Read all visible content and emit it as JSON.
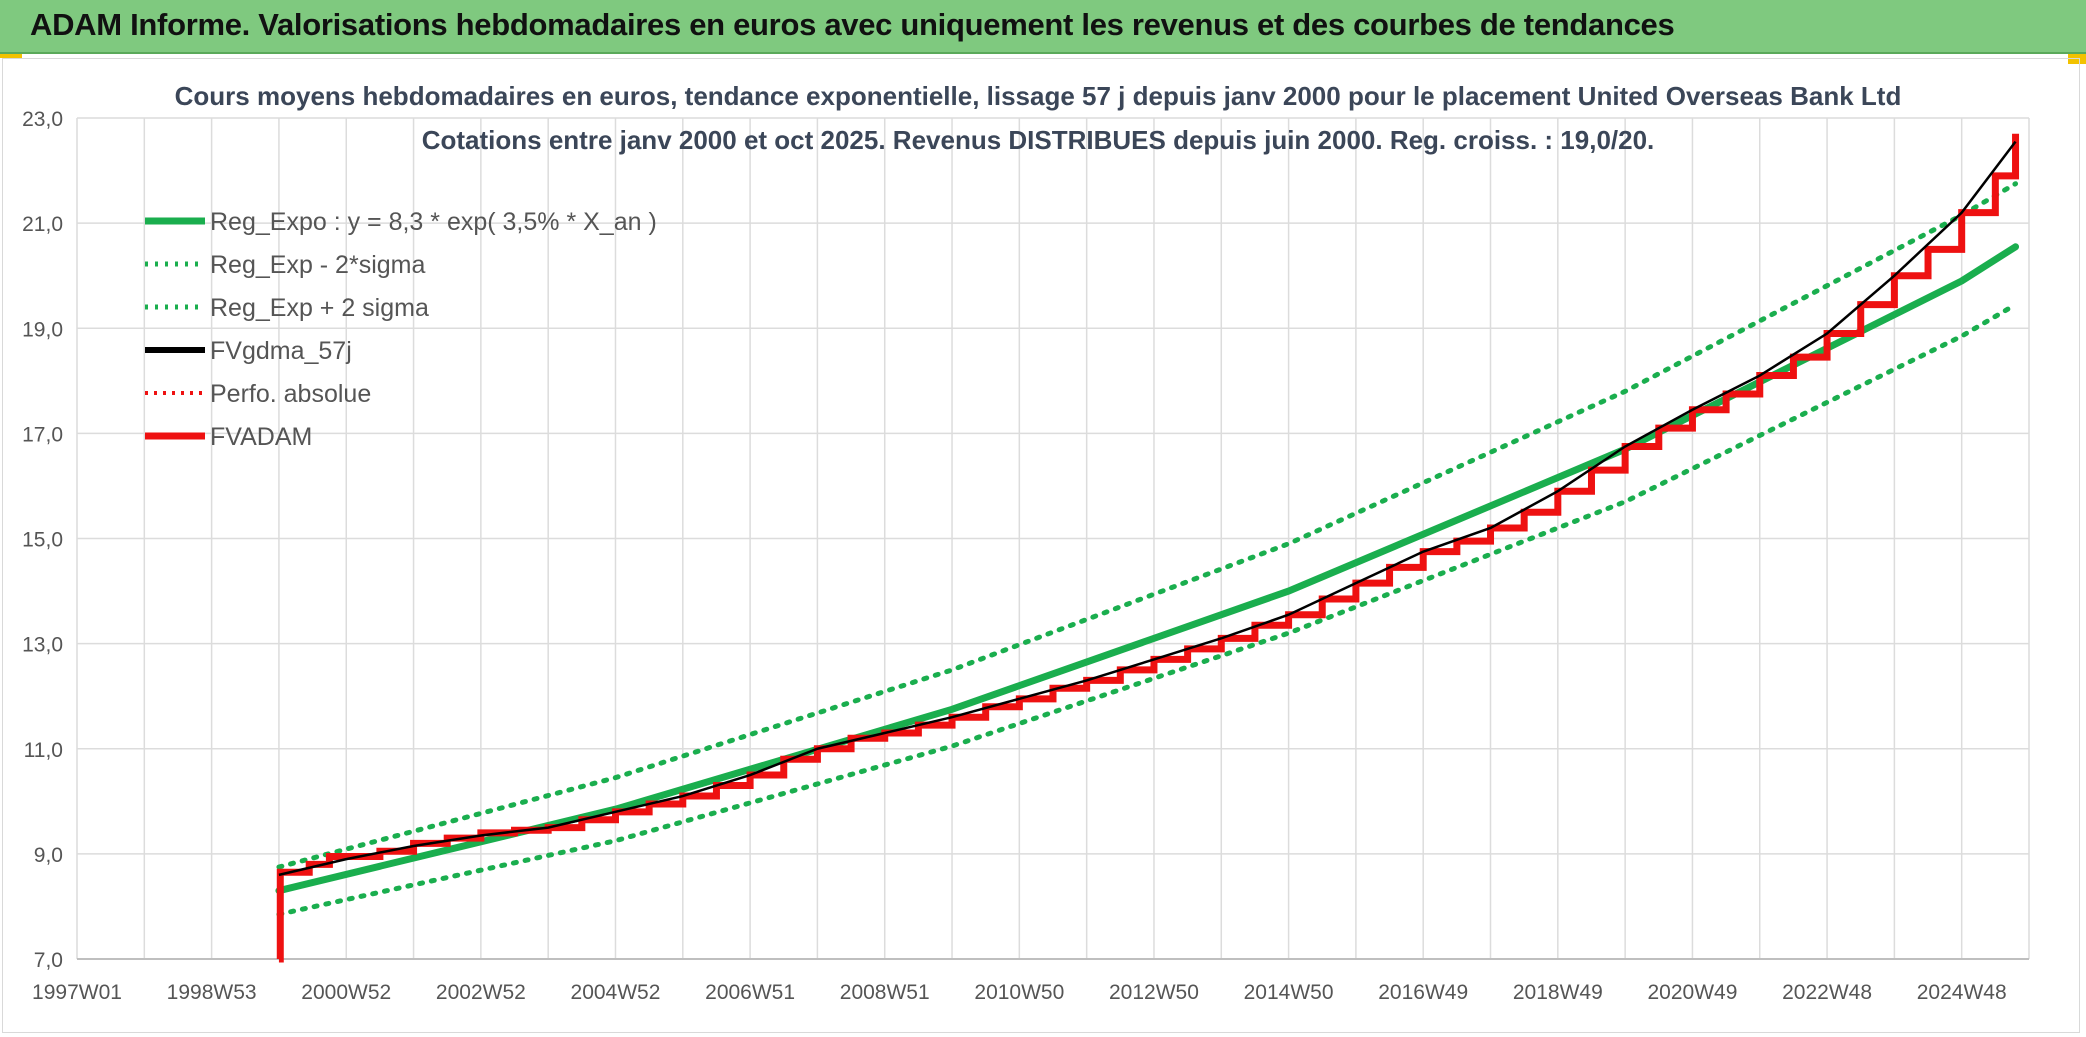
{
  "banner": {
    "title": "ADAM Informe. Valorisations hebdomadaires en euros avec uniquement les revenus et des courbes de tendances"
  },
  "colors": {
    "banner_bg": "#7fc97f",
    "reg_green": "#1aae4e",
    "fvgdma": "#000000",
    "fvadam": "#ee1111",
    "grid": "#dcdcdc"
  },
  "chart_data": {
    "type": "line",
    "title": "Cours moyens hebdomadaires en euros, tendance exponentielle, lissage 57 j depuis janv 2000 pour le placement United Overseas Bank Ltd",
    "subtitle": "Cotations entre janv 2000 et oct 2025. Revenus DISTRIBUES depuis juin 2000. Reg. croiss. : 19,0/20.",
    "xlabel": "",
    "ylabel": "",
    "x_range": [
      1997.0,
      2026.0
    ],
    "ylim": [
      7.0,
      23.0
    ],
    "y_ticks": [
      "7,0",
      "9,0",
      "11,0",
      "13,0",
      "15,0",
      "17,0",
      "19,0",
      "21,0",
      "23,0"
    ],
    "y_tick_values": [
      7,
      9,
      11,
      13,
      15,
      17,
      19,
      21,
      23
    ],
    "x_ticks": [
      {
        "label": "1997W01",
        "x": 1997.0
      },
      {
        "label": "1998W53",
        "x": 1999.0
      },
      {
        "label": "2000W52",
        "x": 2001.0
      },
      {
        "label": "2002W52",
        "x": 2003.0
      },
      {
        "label": "2004W52",
        "x": 2005.0
      },
      {
        "label": "2006W51",
        "x": 2007.0
      },
      {
        "label": "2008W51",
        "x": 2009.0
      },
      {
        "label": "2010W50",
        "x": 2011.0
      },
      {
        "label": "2012W50",
        "x": 2013.0
      },
      {
        "label": "2014W50",
        "x": 2015.0
      },
      {
        "label": "2016W49",
        "x": 2017.0
      },
      {
        "label": "2018W49",
        "x": 2019.0
      },
      {
        "label": "2020W49",
        "x": 2021.0
      },
      {
        "label": "2022W48",
        "x": 2023.0
      },
      {
        "label": "2024W48",
        "x": 2025.0
      }
    ],
    "grid": true,
    "legend_position": "top-left",
    "legend": [
      {
        "label": "Reg_Expo : y = 8,3 * exp( 3,5% *  X_an )",
        "style": "solid-green"
      },
      {
        "label": "Reg_Exp - 2*sigma",
        "style": "dotted-green"
      },
      {
        "label": "Reg_Exp + 2 sigma",
        "style": "dotted-green"
      },
      {
        "label": "FVgdma_57j",
        "style": "solid-black"
      },
      {
        "label": "Perfo. absolue",
        "style": "dotted-red"
      },
      {
        "label": "FVADAM",
        "style": "solid-red"
      }
    ],
    "series": [
      {
        "name": "Reg_Expo : y = 8,3 * exp( 3,5% *  X_an )",
        "x": [
          2000.0,
          2005.0,
          2010.0,
          2015.0,
          2020.0,
          2025.0,
          2025.8
        ],
        "y": [
          8.3,
          9.85,
          11.75,
          14.0,
          16.7,
          19.9,
          20.55
        ]
      },
      {
        "name": "Reg_Exp - 2*sigma",
        "x": [
          2000.0,
          2005.0,
          2010.0,
          2015.0,
          2020.0,
          2025.0,
          2025.8
        ],
        "y": [
          7.85,
          9.25,
          11.05,
          13.2,
          15.7,
          18.85,
          19.45
        ]
      },
      {
        "name": "Reg_Exp + 2 sigma",
        "x": [
          2000.0,
          2005.0,
          2010.0,
          2015.0,
          2020.0,
          2025.0,
          2025.8
        ],
        "y": [
          8.75,
          10.45,
          12.5,
          14.9,
          17.8,
          21.15,
          21.75
        ]
      },
      {
        "name": "FVADAM",
        "x": [
          2000.0,
          2000.02,
          2000.3,
          2000.45,
          2000.6,
          2000.75,
          2001.0,
          2001.5,
          2002.0,
          2002.5,
          2003.0,
          2003.5,
          2004.0,
          2004.5,
          2005.0,
          2005.5,
          2006.0,
          2006.5,
          2007.0,
          2007.5,
          2008.0,
          2008.5,
          2009.0,
          2009.5,
          2010.0,
          2010.5,
          2011.0,
          2011.5,
          2012.0,
          2012.5,
          2013.0,
          2013.5,
          2014.0,
          2014.5,
          2015.0,
          2015.5,
          2016.0,
          2016.5,
          2017.0,
          2017.5,
          2018.0,
          2018.5,
          2019.0,
          2019.5,
          2020.0,
          2020.5,
          2021.0,
          2021.5,
          2022.0,
          2022.5,
          2023.0,
          2023.5,
          2024.0,
          2024.5,
          2025.0,
          2025.5,
          2025.8
        ],
        "y": [
          7.0,
          8.65,
          8.65,
          8.8,
          8.8,
          8.95,
          8.95,
          9.05,
          9.2,
          9.3,
          9.4,
          9.45,
          9.5,
          9.65,
          9.8,
          9.95,
          10.1,
          10.3,
          10.5,
          10.8,
          11.0,
          11.2,
          11.3,
          11.45,
          11.6,
          11.8,
          11.95,
          12.15,
          12.3,
          12.5,
          12.7,
          12.9,
          13.1,
          13.35,
          13.55,
          13.85,
          14.15,
          14.45,
          14.75,
          14.95,
          15.2,
          15.5,
          15.9,
          16.3,
          16.75,
          17.1,
          17.45,
          17.75,
          18.1,
          18.45,
          18.9,
          19.45,
          20.0,
          20.5,
          21.2,
          21.9,
          22.7
        ]
      },
      {
        "name": "FVgdma_57j",
        "x": [
          2000.0,
          2000.5,
          2001.0,
          2002.0,
          2003.0,
          2004.0,
          2005.0,
          2006.0,
          2007.0,
          2008.0,
          2009.0,
          2010.0,
          2011.0,
          2012.0,
          2013.0,
          2014.0,
          2015.0,
          2016.0,
          2017.0,
          2018.0,
          2019.0,
          2020.0,
          2021.0,
          2022.0,
          2023.0,
          2024.0,
          2025.0,
          2025.8
        ],
        "y": [
          8.6,
          8.75,
          8.9,
          9.15,
          9.35,
          9.5,
          9.8,
          10.1,
          10.5,
          11.0,
          11.3,
          11.6,
          11.95,
          12.3,
          12.7,
          13.1,
          13.55,
          14.15,
          14.75,
          15.2,
          15.9,
          16.75,
          17.45,
          18.1,
          18.9,
          20.0,
          21.2,
          22.55
        ]
      }
    ]
  }
}
